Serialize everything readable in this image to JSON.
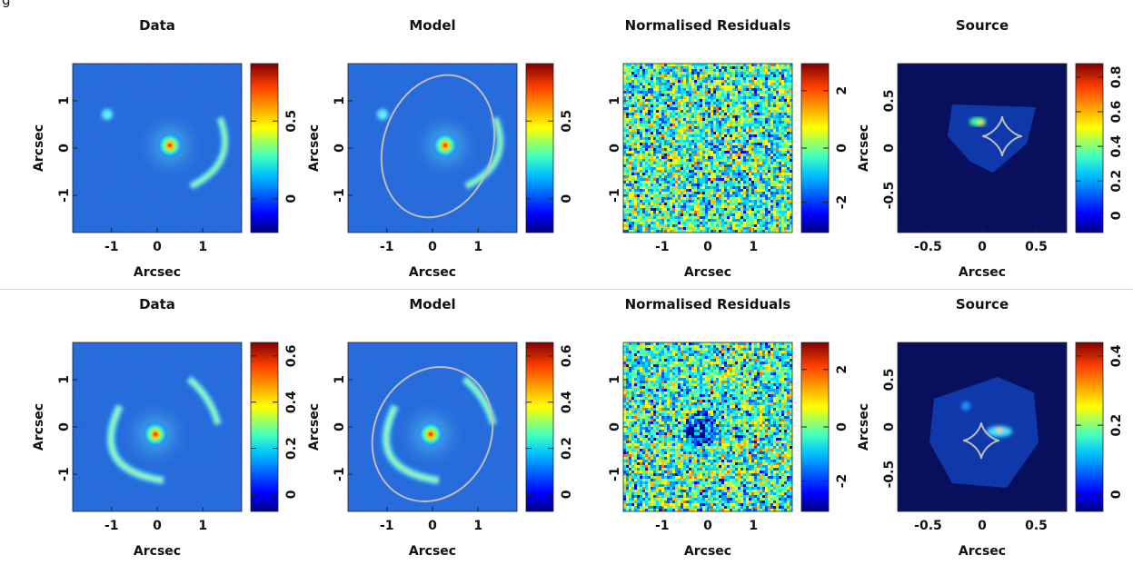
{
  "figure_label": "g",
  "rows": [
    {
      "panels": [
        {
          "title": "Data",
          "type": "image",
          "xlabel": "Arcsec",
          "ylabel": "Arcsec",
          "xticks": [
            "-1",
            "0",
            "1"
          ],
          "yticks": [
            "1",
            "0",
            "-1"
          ],
          "colorbar_ticks": [
            "0.5",
            "0"
          ],
          "critical_curve": false
        },
        {
          "title": "Model",
          "type": "image",
          "xlabel": "Arcsec",
          "ylabel": "Arcsec",
          "xticks": [
            "-1",
            "0",
            "1"
          ],
          "yticks": [
            "1",
            "0",
            "-1"
          ],
          "colorbar_ticks": [
            "0.5",
            "0"
          ],
          "critical_curve": true
        },
        {
          "title": "Normalised Residuals",
          "type": "noise",
          "xlabel": "Arcsec",
          "ylabel": "",
          "xticks": [
            "-1",
            "0",
            "1"
          ],
          "yticks": [
            "1",
            "0",
            "-1"
          ],
          "colorbar_ticks": [
            "2",
            "0",
            "-2"
          ],
          "critical_curve": false
        },
        {
          "title": "Source",
          "type": "source",
          "xlabel": "Arcsec",
          "ylabel": "Arcsec",
          "xticks": [
            "-0.5",
            "0",
            "0.5"
          ],
          "yticks": [
            "0.5",
            "0",
            "-0.5"
          ],
          "colorbar_ticks": [
            "0.8",
            "0.6",
            "0.4",
            "0.2",
            "0"
          ],
          "critical_curve": true
        }
      ]
    },
    {
      "panels": [
        {
          "title": "Data",
          "type": "image",
          "xlabel": "Arcsec",
          "ylabel": "Arcsec",
          "xticks": [
            "-1",
            "0",
            "1"
          ],
          "yticks": [
            "1",
            "0",
            "-1"
          ],
          "colorbar_ticks": [
            "0.6",
            "0.4",
            "0.2",
            "0"
          ],
          "critical_curve": false
        },
        {
          "title": "Model",
          "type": "image",
          "xlabel": "Arcsec",
          "ylabel": "Arcsec",
          "xticks": [
            "-1",
            "0",
            "1"
          ],
          "yticks": [
            "1",
            "0",
            "-1"
          ],
          "colorbar_ticks": [
            "0.6",
            "0.4",
            "0.2",
            "0"
          ],
          "critical_curve": true
        },
        {
          "title": "Normalised Residuals",
          "type": "noise",
          "xlabel": "Arcsec",
          "ylabel": "",
          "xticks": [
            "-1",
            "0",
            "1"
          ],
          "yticks": [
            "1",
            "0",
            "-1"
          ],
          "colorbar_ticks": [
            "2",
            "0",
            "-2"
          ],
          "critical_curve": false
        },
        {
          "title": "Source",
          "type": "source",
          "xlabel": "Arcsec",
          "ylabel": "Arcsec",
          "xticks": [
            "-0.5",
            "0",
            "0.5"
          ],
          "yticks": [
            "0.5",
            "0",
            "-0.5"
          ],
          "colorbar_ticks": [
            "0.4",
            "0.2",
            "0"
          ],
          "critical_curve": true
        }
      ]
    }
  ],
  "colors": {
    "colormap": [
      "#00007f",
      "#0000ff",
      "#007fff",
      "#00ffff",
      "#7fff7f",
      "#ffff00",
      "#ff7f00",
      "#ff0000",
      "#7f0000"
    ],
    "background_image": "#1a5fd6",
    "background_source": "#08105e",
    "critical_curve": "#bdbdbd"
  }
}
